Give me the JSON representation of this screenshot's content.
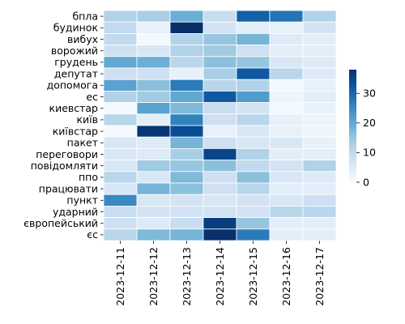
{
  "chart_data": {
    "type": "heatmap",
    "title": "",
    "xlabel": "",
    "ylabel": "",
    "columns": [
      "2023-12-11",
      "2023-12-12",
      "2023-12-13",
      "2023-12-14",
      "2023-12-15",
      "2023-12-16",
      "2023-12-17"
    ],
    "rows": [
      "бпла",
      "будинок",
      "вибух",
      "ворожий",
      "грудень",
      "депутат",
      "допомога",
      "ес",
      "киевстар",
      "київ",
      "київстар",
      "пакет",
      "переговори",
      "повідомляти",
      "ппо",
      "працювати",
      "пункт",
      "ударний",
      "європейський",
      "єс"
    ],
    "values": [
      [
        12,
        13,
        19,
        9,
        31,
        28,
        12
      ],
      [
        10,
        3,
        38,
        7,
        4,
        3,
        7
      ],
      [
        10,
        1,
        12,
        15,
        18,
        5,
        4
      ],
      [
        8,
        6,
        12,
        14,
        8,
        4,
        4
      ],
      [
        20,
        19,
        11,
        16,
        15,
        6,
        5
      ],
      [
        8,
        8,
        3,
        13,
        32,
        11,
        5
      ],
      [
        21,
        16,
        27,
        11,
        12,
        1,
        3
      ],
      [
        12,
        14,
        20,
        32,
        22,
        2,
        4
      ],
      [
        1,
        21,
        17,
        9,
        7,
        1,
        3
      ],
      [
        11,
        4,
        26,
        8,
        11,
        3,
        2
      ],
      [
        1,
        37,
        34,
        3,
        6,
        3,
        2
      ],
      [
        6,
        5,
        18,
        8,
        6,
        6,
        3
      ],
      [
        6,
        5,
        13,
        35,
        12,
        4,
        4
      ],
      [
        6,
        14,
        15,
        16,
        10,
        7,
        12
      ],
      [
        11,
        6,
        17,
        8,
        16,
        6,
        5
      ],
      [
        6,
        18,
        16,
        8,
        11,
        4,
        4
      ],
      [
        25,
        6,
        7,
        6,
        7,
        6,
        8
      ],
      [
        9,
        7,
        7,
        7,
        7,
        11,
        11
      ],
      [
        8,
        5,
        9,
        36,
        15,
        4,
        4
      ],
      [
        11,
        17,
        18,
        38,
        27,
        4,
        4
      ]
    ],
    "colorbar": {
      "min": 0,
      "max": 38,
      "ticks": [
        0,
        10,
        20,
        30
      ]
    },
    "colormap": [
      "#f7fbff",
      "#deebf7",
      "#c6dbef",
      "#9ecae1",
      "#6baed6",
      "#4292c6",
      "#2171b5",
      "#08519c",
      "#08306b"
    ],
    "grid_line_color": "#ffffff"
  }
}
